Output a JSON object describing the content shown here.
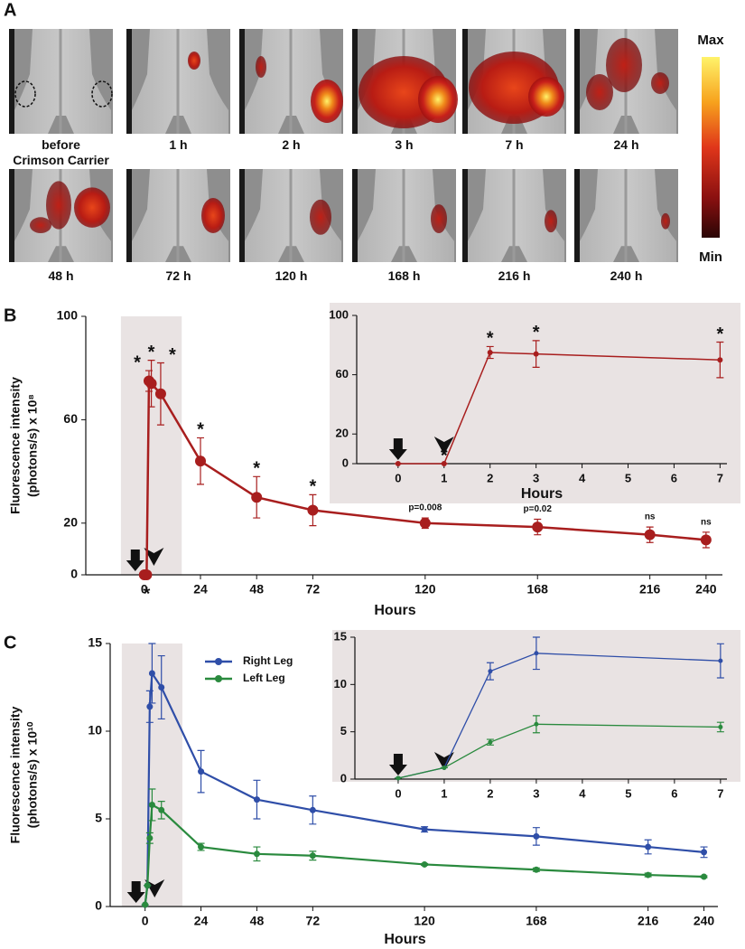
{
  "panel_labels": [
    "A",
    "B",
    "C"
  ],
  "imaging": {
    "labels": [
      "before\nCrimson Carrier",
      "1 h",
      "2 h",
      "3 h",
      "7 h",
      "24 h",
      "48 h",
      "72 h",
      "120 h",
      "168 h",
      "216 h",
      "240 h"
    ],
    "colorbar": {
      "max": "Max",
      "min": "Min"
    }
  },
  "chart_data": [
    {
      "type": "line",
      "xlabel": "Hours",
      "ylabel": [
        "Fluorescence intensity",
        "(photons/s) x 10⁸"
      ],
      "x": [
        0,
        1,
        2,
        3,
        7,
        24,
        48,
        72,
        120,
        168,
        216,
        240
      ],
      "series": [
        {
          "color": "#a81e1e",
          "values": [
            0,
            0,
            75,
            74,
            70,
            44,
            30,
            25,
            20,
            18.5,
            15.5,
            13.5
          ],
          "errors": [
            0,
            0,
            4,
            9,
            12,
            9,
            8,
            6,
            2,
            3,
            3,
            3
          ],
          "point_labels": [
            null,
            "*",
            "*",
            "*",
            "*",
            "*",
            "*",
            "*",
            "p=0.008",
            "p=0.02",
            "ns",
            "ns"
          ]
        }
      ],
      "xlim": [
        -25,
        247
      ],
      "ylim": [
        0,
        100
      ],
      "xticks": [
        0,
        24,
        48,
        72,
        120,
        168,
        216,
        240
      ],
      "yticks": [
        0,
        20,
        60,
        100
      ],
      "highlight": {
        "xlim": [
          -10,
          16
        ],
        "color": "#e9e3e3"
      }
    },
    {
      "type": "line",
      "xlabel": "Hours",
      "x": [
        0,
        1,
        2,
        3,
        7
      ],
      "series": [
        {
          "color": "#a81e1e",
          "values": [
            0,
            0,
            75,
            74,
            70
          ],
          "errors": [
            0,
            0,
            4,
            9,
            12
          ],
          "point_labels": [
            null,
            "*",
            "*",
            "*",
            "*"
          ]
        }
      ],
      "xlim": [
        -0.9,
        7.15
      ],
      "ylim": [
        0,
        100
      ],
      "xticks": [
        0,
        1,
        2,
        3,
        4,
        5,
        6,
        7
      ],
      "yticks": [
        0,
        20,
        60,
        100
      ]
    },
    {
      "type": "line",
      "xlabel": "Hours",
      "ylabel": [
        "Fluorescence intensity",
        "(photons/s) x 10¹⁰"
      ],
      "x": [
        0,
        1,
        2,
        3,
        7,
        24,
        48,
        72,
        120,
        168,
        216,
        240
      ],
      "series": [
        {
          "name": "Right Leg",
          "color": "#2f4ea8",
          "values": [
            0.1,
            1.2,
            11.4,
            13.3,
            12.5,
            7.7,
            6.1,
            5.5,
            4.4,
            4.0,
            3.4,
            3.1
          ],
          "errors": [
            0,
            0,
            0.9,
            1.7,
            1.8,
            1.2,
            1.1,
            0.8,
            0.15,
            0.5,
            0.4,
            0.3
          ]
        },
        {
          "name": "Left Leg",
          "color": "#2a8a3e",
          "values": [
            0.1,
            1.2,
            3.9,
            5.8,
            5.5,
            3.4,
            3.0,
            2.9,
            2.4,
            2.1,
            1.8,
            1.7
          ],
          "errors": [
            0,
            0,
            0.3,
            0.9,
            0.5,
            0.2,
            0.4,
            0.25,
            0.05,
            0.1,
            0.1,
            0.05
          ]
        }
      ],
      "xlim": [
        -15,
        246
      ],
      "ylim": [
        0,
        15
      ],
      "xticks": [
        0,
        24,
        48,
        72,
        120,
        168,
        216,
        240
      ],
      "yticks": [
        0,
        5,
        10,
        15
      ],
      "legend": "top-left",
      "highlight": {
        "xlim": [
          -10,
          16
        ],
        "color": "#e9e3e3"
      }
    },
    {
      "type": "line",
      "x": [
        0,
        1,
        2,
        3,
        7
      ],
      "series": [
        {
          "color": "#2f4ea8",
          "values": [
            0.1,
            1.2,
            11.4,
            13.3,
            12.5
          ],
          "errors": [
            0,
            0,
            0.9,
            1.7,
            1.8
          ]
        },
        {
          "color": "#2a8a3e",
          "values": [
            0.1,
            1.2,
            3.9,
            5.8,
            5.5
          ],
          "errors": [
            0,
            0,
            0.3,
            0.9,
            0.5
          ]
        }
      ],
      "xlim": [
        -0.94,
        7.14
      ],
      "ylim": [
        0,
        15
      ],
      "xticks": [
        0,
        1,
        2,
        3,
        4,
        5,
        6,
        7
      ],
      "yticks": [
        0,
        5,
        10,
        15
      ]
    }
  ]
}
